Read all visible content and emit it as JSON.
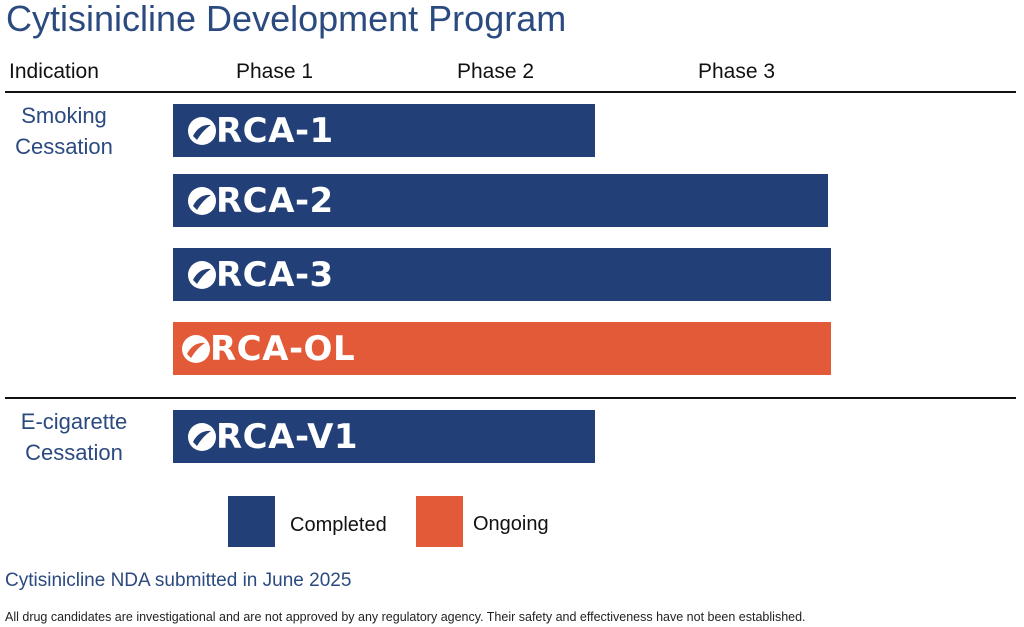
{
  "title": "Cytisinicline Development Program",
  "headers": {
    "indication": "Indication",
    "phases": [
      "Phase 1",
      "Phase 2",
      "Phase 3"
    ]
  },
  "indications": [
    {
      "label": "Smoking Cessation",
      "trials": [
        {
          "name": "ORCA-1",
          "reached_phase": 2,
          "status": "Completed"
        },
        {
          "name": "ORCA-2",
          "reached_phase": 3,
          "status": "Completed"
        },
        {
          "name": "ORCA-3",
          "reached_phase": 3,
          "status": "Completed"
        },
        {
          "name": "ORCA-OL",
          "reached_phase": 3,
          "status": "Ongoing"
        }
      ]
    },
    {
      "label": "E-cigarette Cessation",
      "trials": [
        {
          "name": "ORCA-V1",
          "reached_phase": 2,
          "status": "Completed"
        }
      ]
    }
  ],
  "trial_logos": {
    "ORCA-1": {
      "rest": "RCA-1"
    },
    "ORCA-2": {
      "rest": "RCA-2"
    },
    "ORCA-3": {
      "rest": "RCA-3"
    },
    "ORCA-OL": {
      "rest": "RCA-OL"
    },
    "ORCA-V1": {
      "rest": "RCA-V1"
    }
  },
  "legend": [
    {
      "label": "Completed",
      "color": "#223f77"
    },
    {
      "label": "Ongoing",
      "color": "#e35a38"
    }
  ],
  "colors": {
    "completed": "#223f77",
    "ongoing": "#e35a38",
    "accent_text": "#2b4a7f"
  },
  "nda_note": "Cytisinicline NDA submitted in June 2025",
  "disclaimer": "All drug candidates are investigational and are not approved by any regulatory agency. Their safety and effectiveness have not been established."
}
